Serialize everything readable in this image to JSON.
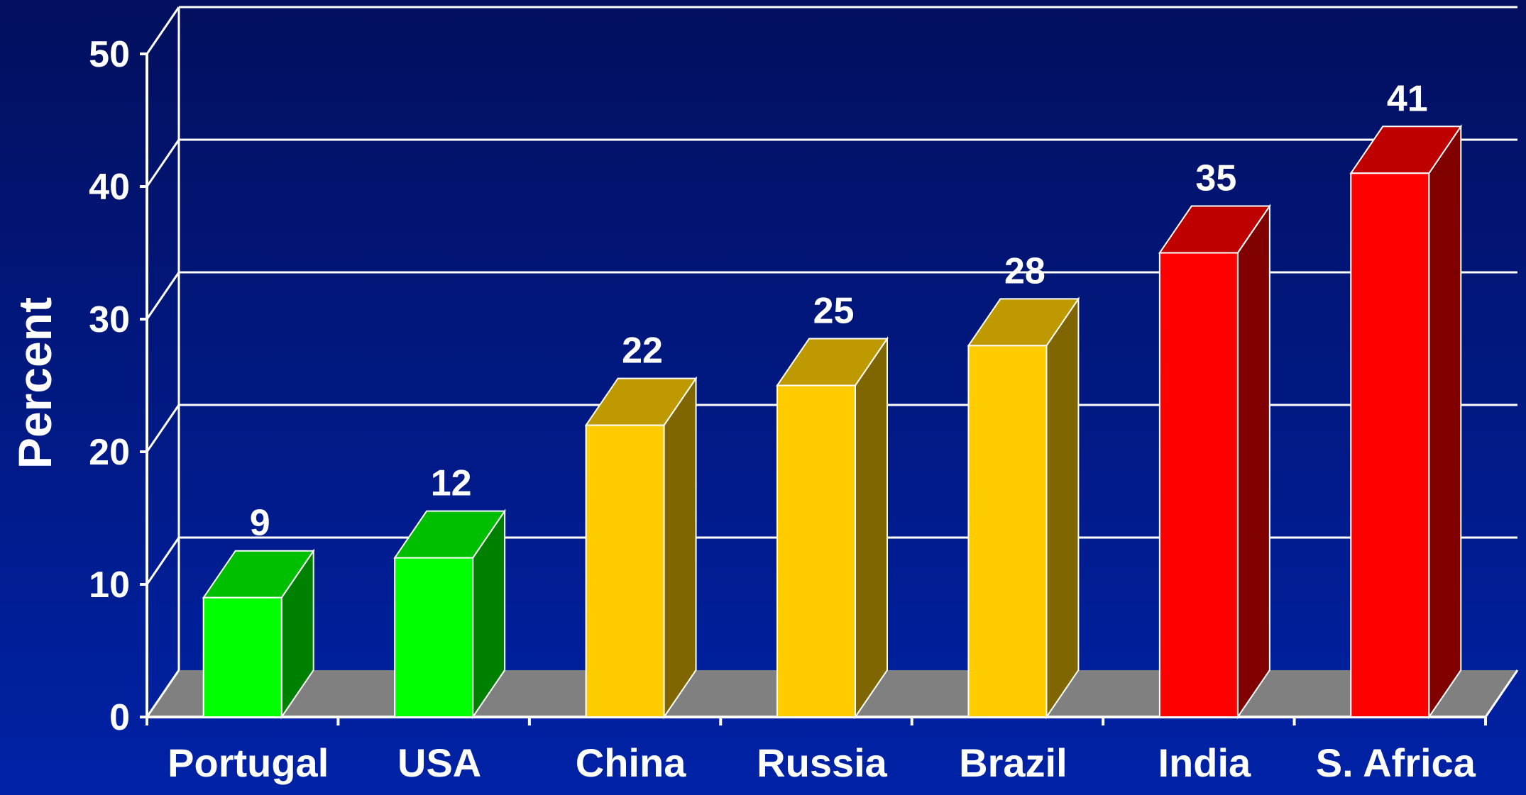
{
  "chart_data": {
    "type": "bar",
    "ylabel": "Percent",
    "xlabel": "",
    "ylim": [
      0,
      50
    ],
    "yticks": [
      0,
      10,
      20,
      30,
      40,
      50
    ],
    "grid": true,
    "three_d": true,
    "categories": [
      "Portugal",
      "USA",
      "China",
      "Russia",
      "Brazil",
      "India",
      "S. Africa"
    ],
    "values": [
      9,
      12,
      22,
      25,
      28,
      35,
      41
    ],
    "value_labels": [
      "9",
      "12",
      "22",
      "25",
      "28",
      "35",
      "41"
    ],
    "bar_colors": [
      "#00ff00",
      "#00ff00",
      "#ffcc00",
      "#ffcc00",
      "#ffcc00",
      "#ff0000",
      "#ff0000"
    ]
  },
  "colors": {
    "background_top": "#020f5e",
    "background_bottom": "#0022a6",
    "grid": "#ffffff",
    "floor": "#808080",
    "text": "#ffffff"
  }
}
